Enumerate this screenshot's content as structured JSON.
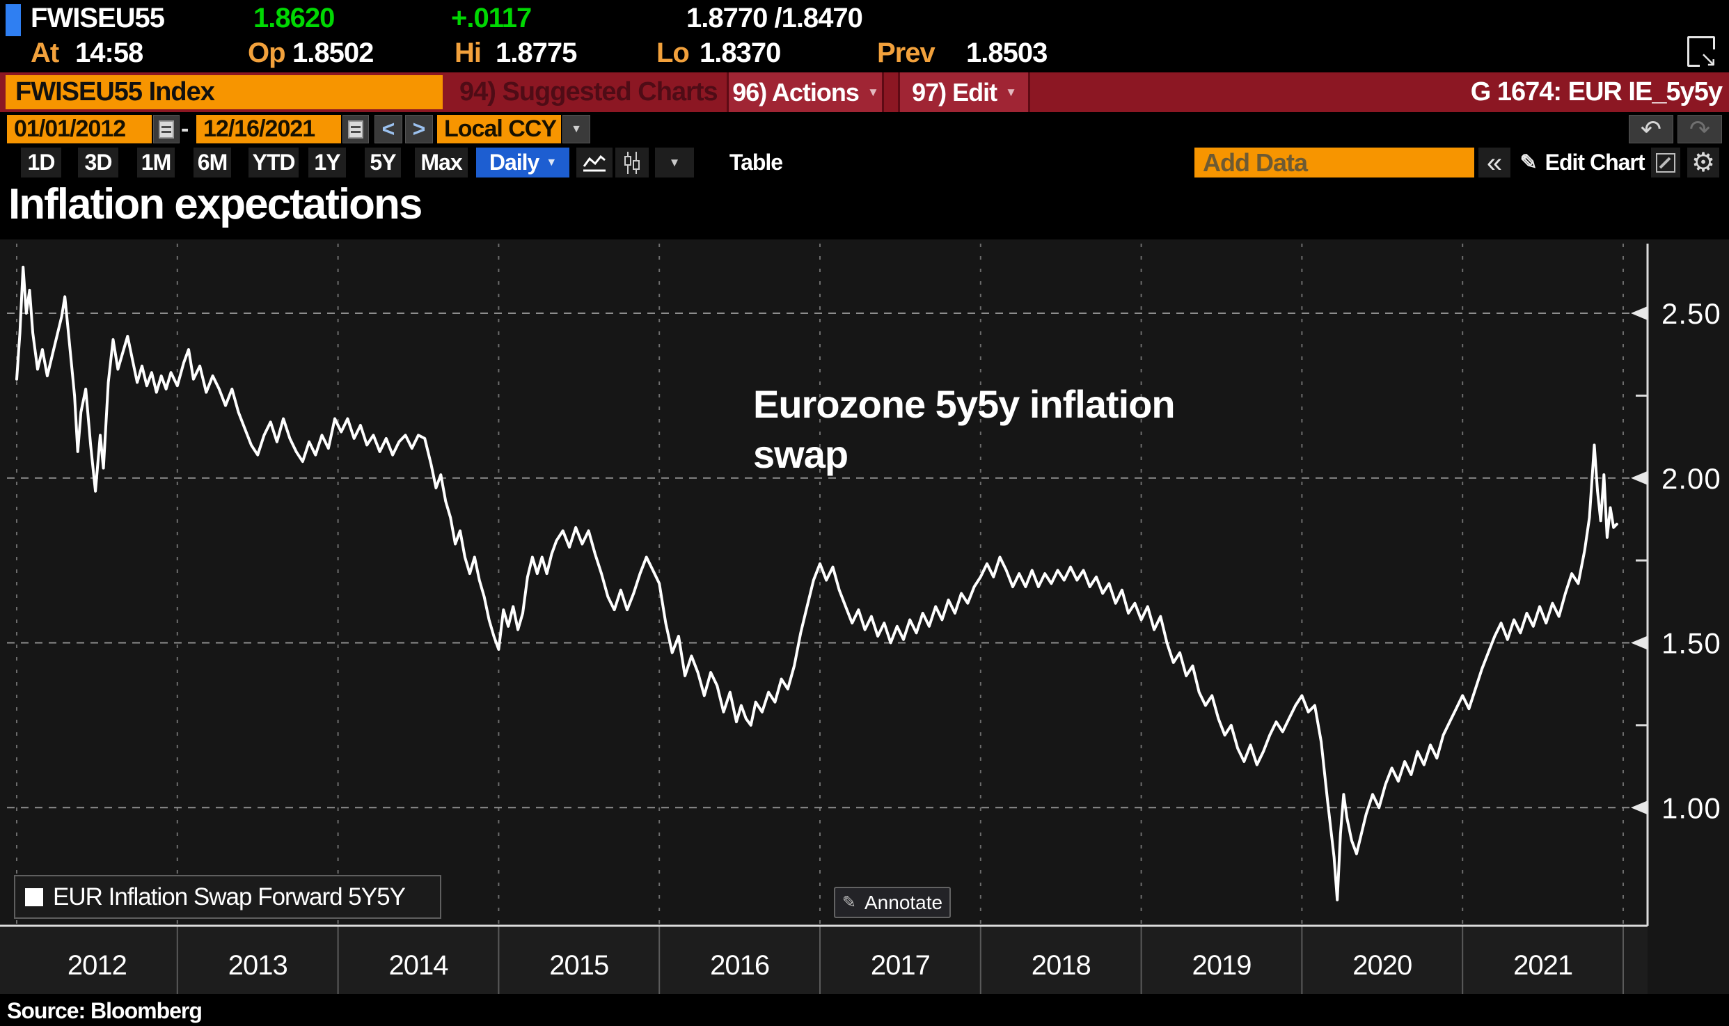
{
  "quote": {
    "ticker": "FWISEU55",
    "last": "1.8620",
    "change": "+.0117",
    "bid_ask": "1.8770 /1.8470",
    "at_label": "At",
    "time": "14:58",
    "op_label": "Op",
    "open": "1.8502",
    "hi_label": "Hi",
    "high": "1.8775",
    "lo_label": "Lo",
    "low": "1.8370",
    "prev_label": "Prev",
    "prev": "1.8503"
  },
  "function_bar": {
    "security": "FWISEU55 Index",
    "suggested": "94) Suggested Charts",
    "actions": "96) Actions",
    "edit": "97) Edit",
    "page_info": "G 1674: EUR IE_5y5y"
  },
  "date_bar": {
    "start_date": "01/01/2012",
    "separator": "-",
    "end_date": "12/16/2021",
    "prev_label": "<",
    "next_label": ">",
    "currency": "Local CCY"
  },
  "toolbar": {
    "ranges": [
      "1D",
      "3D",
      "1M",
      "6M",
      "YTD",
      "1Y",
      "5Y",
      "Max"
    ],
    "frequency": "Daily",
    "table_label": "Table",
    "add_data_placeholder": "Add Data",
    "collapse_label": "«",
    "edit_chart_label": "Edit Chart"
  },
  "chart": {
    "title": "Inflation expectations",
    "annotation_line1": "Eurozone 5y5y inflation",
    "annotation_line2": "swap",
    "legend_label": "EUR Inflation Swap Forward 5Y5Y",
    "annotate_label": "Annotate",
    "source": "Source:  Bloomberg"
  },
  "colors": {
    "accent_orange": "#f79500",
    "function_bar_red": "#8c1723",
    "selected_blue": "#1d5ed1",
    "price_green": "#00d802",
    "label_amber": "#f2a13c",
    "line_color": "#ffffff",
    "panel_bg": "#161616",
    "axis_strip_bg": "#1d1d1d"
  },
  "chart_data": {
    "type": "line",
    "title": "Inflation expectations",
    "annotation": "Eurozone 5y5y inflation swap",
    "source": "Source: Bloomberg",
    "grid": "dashed",
    "legend_position": "bottom-left",
    "yaxis_position": "right",
    "xlim": [
      2012.0,
      2022.0
    ],
    "ylim": [
      0.64,
      2.71
    ],
    "x_ticks": [
      2012,
      2013,
      2014,
      2015,
      2016,
      2017,
      2018,
      2019,
      2020,
      2021
    ],
    "y_ticks": [
      1.0,
      1.5,
      2.0,
      2.5
    ],
    "y_tick_labels": [
      "1.00",
      "1.50",
      "2.00",
      "2.50"
    ],
    "y_minor_ticks": [
      1.25,
      1.75,
      2.25
    ],
    "series": [
      {
        "name": "EUR Inflation Swap Forward 5Y5Y",
        "color": "#ffffff",
        "points": [
          [
            2012.0,
            2.3
          ],
          [
            2012.02,
            2.44
          ],
          [
            2012.04,
            2.64
          ],
          [
            2012.06,
            2.5
          ],
          [
            2012.08,
            2.57
          ],
          [
            2012.1,
            2.44
          ],
          [
            2012.13,
            2.33
          ],
          [
            2012.16,
            2.39
          ],
          [
            2012.19,
            2.31
          ],
          [
            2012.22,
            2.37
          ],
          [
            2012.25,
            2.43
          ],
          [
            2012.28,
            2.49
          ],
          [
            2012.3,
            2.55
          ],
          [
            2012.33,
            2.4
          ],
          [
            2012.36,
            2.25
          ],
          [
            2012.38,
            2.08
          ],
          [
            2012.4,
            2.2
          ],
          [
            2012.43,
            2.27
          ],
          [
            2012.46,
            2.1
          ],
          [
            2012.49,
            1.96
          ],
          [
            2012.52,
            2.13
          ],
          [
            2012.54,
            2.03
          ],
          [
            2012.57,
            2.29
          ],
          [
            2012.6,
            2.42
          ],
          [
            2012.63,
            2.33
          ],
          [
            2012.66,
            2.38
          ],
          [
            2012.69,
            2.43
          ],
          [
            2012.72,
            2.36
          ],
          [
            2012.75,
            2.29
          ],
          [
            2012.78,
            2.34
          ],
          [
            2012.81,
            2.28
          ],
          [
            2012.84,
            2.32
          ],
          [
            2012.87,
            2.26
          ],
          [
            2012.9,
            2.31
          ],
          [
            2012.93,
            2.27
          ],
          [
            2012.96,
            2.32
          ],
          [
            2013.0,
            2.28
          ],
          [
            2013.04,
            2.35
          ],
          [
            2013.07,
            2.39
          ],
          [
            2013.1,
            2.3
          ],
          [
            2013.14,
            2.34
          ],
          [
            2013.18,
            2.26
          ],
          [
            2013.22,
            2.31
          ],
          [
            2013.26,
            2.27
          ],
          [
            2013.3,
            2.22
          ],
          [
            2013.34,
            2.27
          ],
          [
            2013.38,
            2.2
          ],
          [
            2013.42,
            2.15
          ],
          [
            2013.46,
            2.1
          ],
          [
            2013.5,
            2.07
          ],
          [
            2013.54,
            2.13
          ],
          [
            2013.58,
            2.17
          ],
          [
            2013.62,
            2.11
          ],
          [
            2013.66,
            2.18
          ],
          [
            2013.7,
            2.12
          ],
          [
            2013.74,
            2.08
          ],
          [
            2013.78,
            2.05
          ],
          [
            2013.82,
            2.11
          ],
          [
            2013.86,
            2.07
          ],
          [
            2013.9,
            2.13
          ],
          [
            2013.94,
            2.09
          ],
          [
            2013.98,
            2.18
          ],
          [
            2014.02,
            2.14
          ],
          [
            2014.06,
            2.18
          ],
          [
            2014.1,
            2.12
          ],
          [
            2014.14,
            2.16
          ],
          [
            2014.18,
            2.1
          ],
          [
            2014.22,
            2.13
          ],
          [
            2014.26,
            2.08
          ],
          [
            2014.3,
            2.12
          ],
          [
            2014.34,
            2.07
          ],
          [
            2014.38,
            2.11
          ],
          [
            2014.42,
            2.13
          ],
          [
            2014.46,
            2.09
          ],
          [
            2014.5,
            2.13
          ],
          [
            2014.54,
            2.12
          ],
          [
            2014.58,
            2.04
          ],
          [
            2014.61,
            1.97
          ],
          [
            2014.64,
            2.01
          ],
          [
            2014.67,
            1.93
          ],
          [
            2014.7,
            1.88
          ],
          [
            2014.73,
            1.8
          ],
          [
            2014.76,
            1.84
          ],
          [
            2014.79,
            1.76
          ],
          [
            2014.82,
            1.71
          ],
          [
            2014.85,
            1.76
          ],
          [
            2014.88,
            1.69
          ],
          [
            2014.91,
            1.64
          ],
          [
            2014.94,
            1.57
          ],
          [
            2014.97,
            1.52
          ],
          [
            2015.0,
            1.48
          ],
          [
            2015.03,
            1.6
          ],
          [
            2015.06,
            1.55
          ],
          [
            2015.09,
            1.61
          ],
          [
            2015.12,
            1.54
          ],
          [
            2015.15,
            1.59
          ],
          [
            2015.18,
            1.7
          ],
          [
            2015.21,
            1.76
          ],
          [
            2015.24,
            1.71
          ],
          [
            2015.27,
            1.76
          ],
          [
            2015.3,
            1.71
          ],
          [
            2015.33,
            1.77
          ],
          [
            2015.36,
            1.81
          ],
          [
            2015.4,
            1.84
          ],
          [
            2015.44,
            1.79
          ],
          [
            2015.48,
            1.85
          ],
          [
            2015.52,
            1.8
          ],
          [
            2015.56,
            1.84
          ],
          [
            2015.6,
            1.77
          ],
          [
            2015.64,
            1.71
          ],
          [
            2015.68,
            1.64
          ],
          [
            2015.72,
            1.6
          ],
          [
            2015.76,
            1.66
          ],
          [
            2015.8,
            1.6
          ],
          [
            2015.84,
            1.65
          ],
          [
            2015.88,
            1.71
          ],
          [
            2015.92,
            1.76
          ],
          [
            2015.96,
            1.72
          ],
          [
            2016.0,
            1.68
          ],
          [
            2016.04,
            1.56
          ],
          [
            2016.08,
            1.47
          ],
          [
            2016.12,
            1.52
          ],
          [
            2016.16,
            1.4
          ],
          [
            2016.2,
            1.46
          ],
          [
            2016.24,
            1.41
          ],
          [
            2016.28,
            1.34
          ],
          [
            2016.32,
            1.41
          ],
          [
            2016.36,
            1.37
          ],
          [
            2016.4,
            1.29
          ],
          [
            2016.44,
            1.35
          ],
          [
            2016.48,
            1.26
          ],
          [
            2016.51,
            1.31
          ],
          [
            2016.54,
            1.27
          ],
          [
            2016.57,
            1.25
          ],
          [
            2016.6,
            1.32
          ],
          [
            2016.64,
            1.29
          ],
          [
            2016.68,
            1.35
          ],
          [
            2016.72,
            1.32
          ],
          [
            2016.76,
            1.39
          ],
          [
            2016.8,
            1.36
          ],
          [
            2016.84,
            1.43
          ],
          [
            2016.88,
            1.53
          ],
          [
            2016.92,
            1.61
          ],
          [
            2016.96,
            1.69
          ],
          [
            2017.0,
            1.74
          ],
          [
            2017.04,
            1.69
          ],
          [
            2017.08,
            1.73
          ],
          [
            2017.12,
            1.66
          ],
          [
            2017.16,
            1.61
          ],
          [
            2017.2,
            1.56
          ],
          [
            2017.24,
            1.6
          ],
          [
            2017.28,
            1.54
          ],
          [
            2017.32,
            1.58
          ],
          [
            2017.36,
            1.52
          ],
          [
            2017.4,
            1.56
          ],
          [
            2017.44,
            1.5
          ],
          [
            2017.48,
            1.55
          ],
          [
            2017.52,
            1.51
          ],
          [
            2017.56,
            1.57
          ],
          [
            2017.6,
            1.53
          ],
          [
            2017.64,
            1.59
          ],
          [
            2017.68,
            1.55
          ],
          [
            2017.72,
            1.61
          ],
          [
            2017.76,
            1.57
          ],
          [
            2017.8,
            1.63
          ],
          [
            2017.84,
            1.59
          ],
          [
            2017.88,
            1.65
          ],
          [
            2017.92,
            1.62
          ],
          [
            2017.96,
            1.67
          ],
          [
            2018.0,
            1.7
          ],
          [
            2018.04,
            1.74
          ],
          [
            2018.08,
            1.7
          ],
          [
            2018.12,
            1.76
          ],
          [
            2018.16,
            1.72
          ],
          [
            2018.2,
            1.67
          ],
          [
            2018.24,
            1.71
          ],
          [
            2018.28,
            1.67
          ],
          [
            2018.32,
            1.72
          ],
          [
            2018.36,
            1.67
          ],
          [
            2018.4,
            1.71
          ],
          [
            2018.44,
            1.68
          ],
          [
            2018.48,
            1.72
          ],
          [
            2018.52,
            1.69
          ],
          [
            2018.56,
            1.73
          ],
          [
            2018.6,
            1.69
          ],
          [
            2018.64,
            1.72
          ],
          [
            2018.68,
            1.67
          ],
          [
            2018.72,
            1.7
          ],
          [
            2018.76,
            1.65
          ],
          [
            2018.8,
            1.68
          ],
          [
            2018.84,
            1.62
          ],
          [
            2018.88,
            1.66
          ],
          [
            2018.92,
            1.59
          ],
          [
            2018.96,
            1.62
          ],
          [
            2019.0,
            1.57
          ],
          [
            2019.04,
            1.61
          ],
          [
            2019.08,
            1.54
          ],
          [
            2019.12,
            1.58
          ],
          [
            2019.16,
            1.5
          ],
          [
            2019.2,
            1.44
          ],
          [
            2019.24,
            1.47
          ],
          [
            2019.28,
            1.4
          ],
          [
            2019.32,
            1.43
          ],
          [
            2019.36,
            1.35
          ],
          [
            2019.4,
            1.31
          ],
          [
            2019.44,
            1.34
          ],
          [
            2019.48,
            1.27
          ],
          [
            2019.52,
            1.22
          ],
          [
            2019.56,
            1.25
          ],
          [
            2019.6,
            1.18
          ],
          [
            2019.64,
            1.14
          ],
          [
            2019.68,
            1.19
          ],
          [
            2019.72,
            1.13
          ],
          [
            2019.76,
            1.17
          ],
          [
            2019.8,
            1.22
          ],
          [
            2019.84,
            1.26
          ],
          [
            2019.88,
            1.23
          ],
          [
            2019.92,
            1.27
          ],
          [
            2019.96,
            1.31
          ],
          [
            2020.0,
            1.34
          ],
          [
            2020.04,
            1.29
          ],
          [
            2020.08,
            1.31
          ],
          [
            2020.12,
            1.2
          ],
          [
            2020.16,
            1.02
          ],
          [
            2020.2,
            0.85
          ],
          [
            2020.22,
            0.72
          ],
          [
            2020.24,
            0.92
          ],
          [
            2020.26,
            1.04
          ],
          [
            2020.28,
            0.97
          ],
          [
            2020.31,
            0.9
          ],
          [
            2020.34,
            0.86
          ],
          [
            2020.37,
            0.92
          ],
          [
            2020.4,
            0.98
          ],
          [
            2020.44,
            1.04
          ],
          [
            2020.48,
            1.0
          ],
          [
            2020.52,
            1.07
          ],
          [
            2020.56,
            1.12
          ],
          [
            2020.6,
            1.08
          ],
          [
            2020.64,
            1.14
          ],
          [
            2020.68,
            1.1
          ],
          [
            2020.72,
            1.17
          ],
          [
            2020.76,
            1.13
          ],
          [
            2020.8,
            1.19
          ],
          [
            2020.84,
            1.15
          ],
          [
            2020.88,
            1.22
          ],
          [
            2020.92,
            1.26
          ],
          [
            2020.96,
            1.3
          ],
          [
            2021.0,
            1.34
          ],
          [
            2021.04,
            1.3
          ],
          [
            2021.08,
            1.36
          ],
          [
            2021.12,
            1.42
          ],
          [
            2021.16,
            1.47
          ],
          [
            2021.2,
            1.52
          ],
          [
            2021.24,
            1.56
          ],
          [
            2021.28,
            1.51
          ],
          [
            2021.32,
            1.57
          ],
          [
            2021.36,
            1.53
          ],
          [
            2021.4,
            1.59
          ],
          [
            2021.44,
            1.55
          ],
          [
            2021.48,
            1.61
          ],
          [
            2021.52,
            1.56
          ],
          [
            2021.56,
            1.62
          ],
          [
            2021.6,
            1.58
          ],
          [
            2021.64,
            1.65
          ],
          [
            2021.68,
            1.71
          ],
          [
            2021.72,
            1.68
          ],
          [
            2021.76,
            1.78
          ],
          [
            2021.79,
            1.88
          ],
          [
            2021.82,
            2.1
          ],
          [
            2021.84,
            1.96
          ],
          [
            2021.86,
            1.87
          ],
          [
            2021.88,
            2.01
          ],
          [
            2021.9,
            1.82
          ],
          [
            2021.92,
            1.91
          ],
          [
            2021.94,
            1.85
          ],
          [
            2021.96,
            1.86
          ]
        ]
      }
    ]
  }
}
